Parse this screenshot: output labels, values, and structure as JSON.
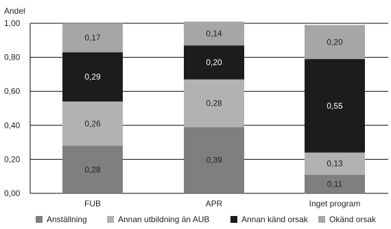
{
  "chart_data": {
    "type": "bar",
    "stacked": true,
    "ylabel": "Andel",
    "ylim": [
      0,
      1
    ],
    "yticks": [
      "0,00",
      "0,20",
      "0,40",
      "0,60",
      "0,80",
      "1,00"
    ],
    "categories": [
      "FUB",
      "APR",
      "Inget program"
    ],
    "series": [
      {
        "name": "Anställning",
        "color": "#7f7f7f",
        "label_color": "#222222",
        "values": [
          0.28,
          0.39,
          0.11
        ],
        "labels": [
          "0,28",
          "0,39",
          "0,11"
        ]
      },
      {
        "name": "Annan utbildning än AUB",
        "color": "#b2b2b2",
        "label_color": "#222222",
        "values": [
          0.26,
          0.28,
          0.13
        ],
        "labels": [
          "0,26",
          "0,28",
          "0,13"
        ]
      },
      {
        "name": "Annan känd orsak",
        "color": "#1c1c1c",
        "label_color": "#ffffff",
        "values": [
          0.29,
          0.2,
          0.55
        ],
        "labels": [
          "0,29",
          "0,20",
          "0,55"
        ]
      },
      {
        "name": "Okänd orsak",
        "color": "#a6a6a6",
        "label_color": "#222222",
        "values": [
          0.17,
          0.14,
          0.2
        ],
        "labels": [
          "0,17",
          "0,14",
          "0,20"
        ]
      }
    ],
    "grid": true,
    "legend_position": "bottom"
  }
}
